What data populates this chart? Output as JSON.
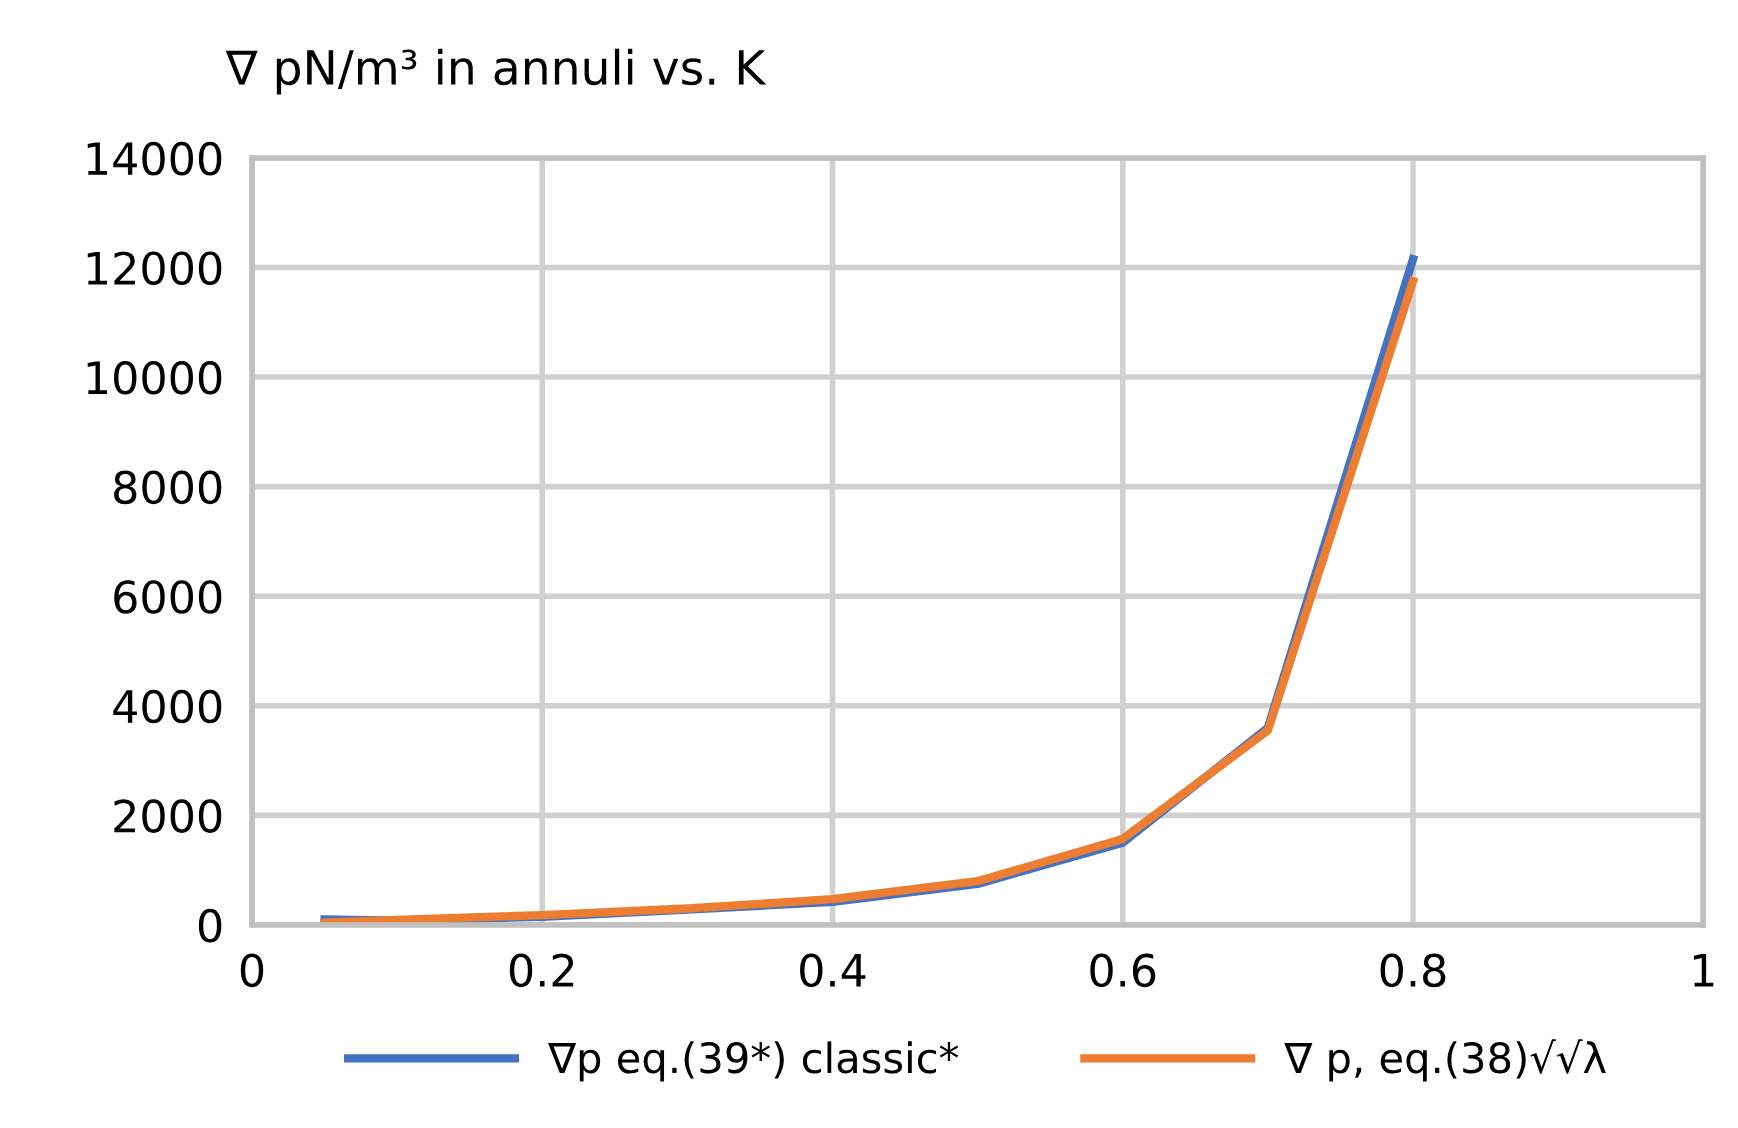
{
  "chart_data": {
    "type": "line",
    "title": "∇ pN/m³ in annuli vs. K",
    "x": [
      0.05,
      0.1,
      0.2,
      0.3,
      0.4,
      0.5,
      0.6,
      0.7,
      0.8
    ],
    "series": [
      {
        "name": "∇p eq.(39*) classic*",
        "color": "#4472c4",
        "values": [
          100,
          80,
          150,
          280,
          420,
          750,
          1500,
          3600,
          12150
        ]
      },
      {
        "name": "∇ p, eq.(38)√√λ",
        "color": "#ed7d31",
        "values": [
          40,
          90,
          180,
          300,
          470,
          800,
          1570,
          3550,
          11750
        ]
      }
    ],
    "xlim": [
      0,
      1
    ],
    "xticks": [
      0,
      0.2,
      0.4,
      0.6,
      0.8,
      1
    ],
    "ylim": [
      0,
      14000
    ],
    "yticks": [
      0,
      2000,
      4000,
      6000,
      8000,
      10000,
      12000,
      14000
    ],
    "grid": true,
    "legend": "bottom",
    "marker": "none",
    "line_style": "solid"
  }
}
